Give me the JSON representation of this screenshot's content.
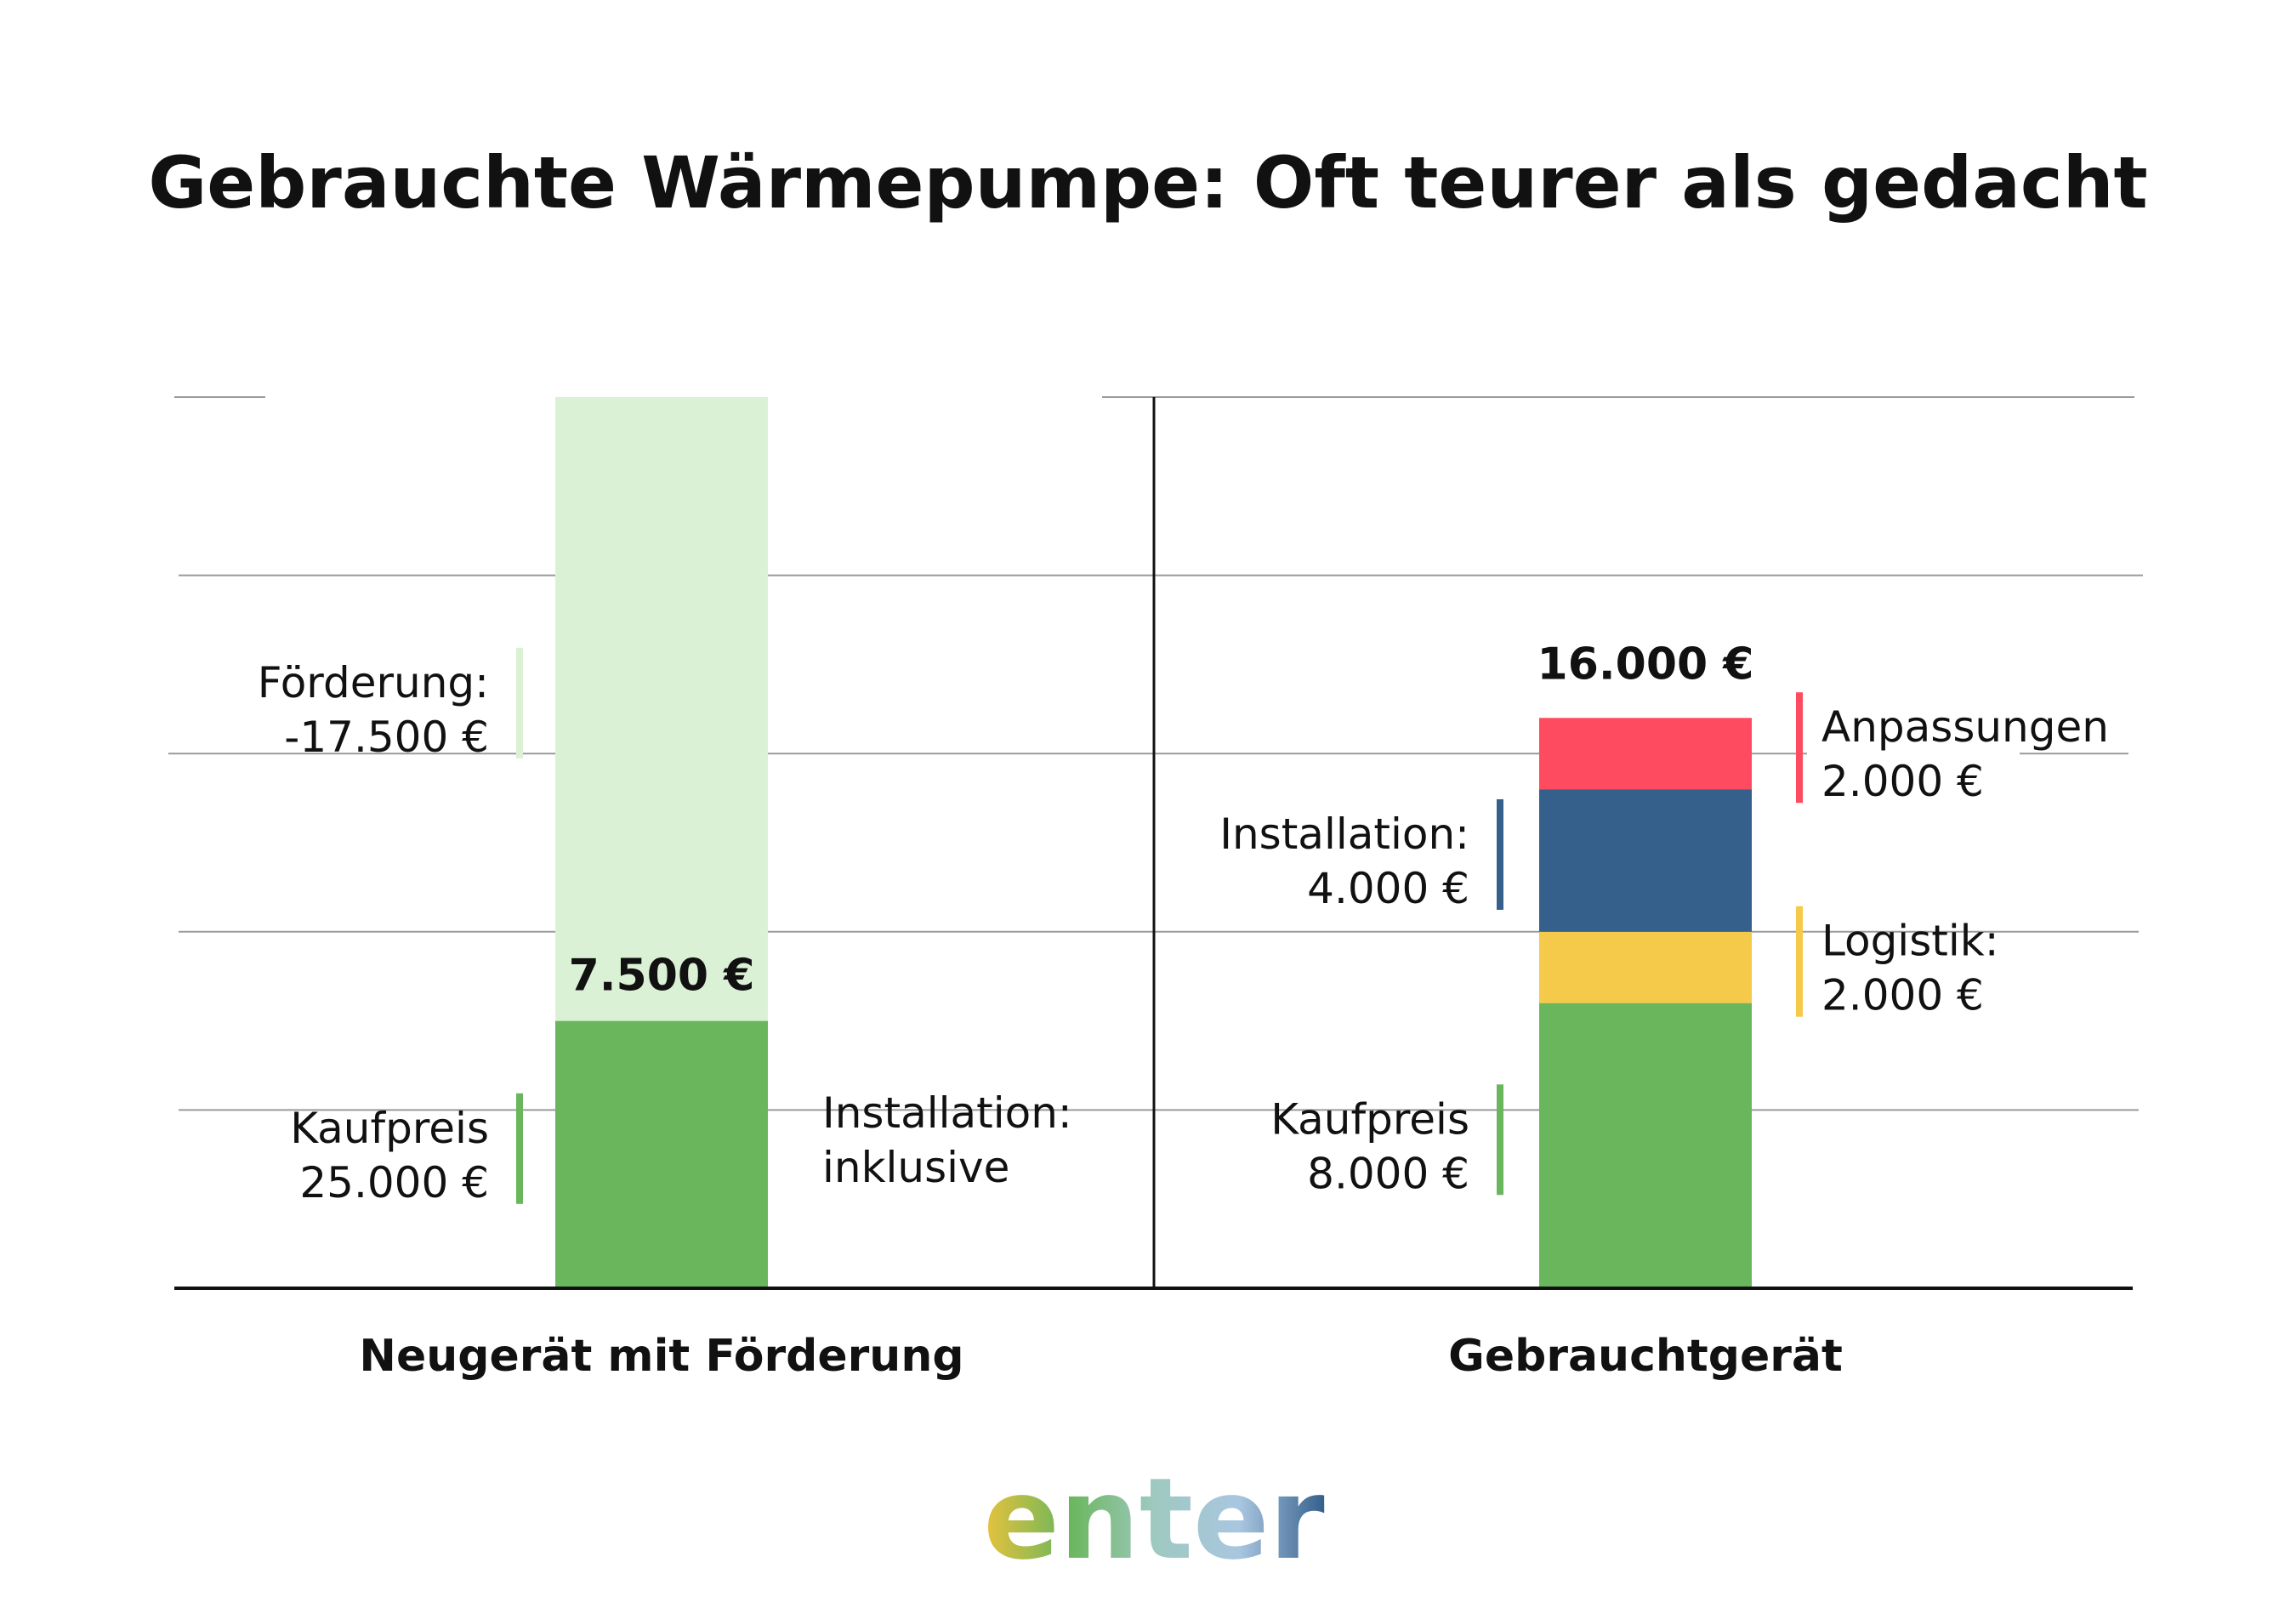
{
  "chart_data": {
    "type": "bar",
    "title": "Gebrauchte Wärmepumpe: Oft teurer als gedacht",
    "ylim": [
      0,
      25000
    ],
    "grid": true,
    "categories": [
      "Neugerät mit Förderung",
      "Gebrauchtgerät"
    ],
    "bars": [
      {
        "category": "Neugerät mit Förderung",
        "total_label": "7.500 €",
        "segments": [
          {
            "key": "kaufpreis",
            "value": 7500,
            "color": "#6ab65c",
            "label_lines": [
              "Kaufpreis",
              "25.000 €"
            ],
            "side": "left"
          },
          {
            "key": "foerderung",
            "value": 17500,
            "color": "#dbf1d6",
            "label_lines": [
              "Förderung:",
              "-17.500 €"
            ],
            "side": "left"
          }
        ],
        "note_lines": [
          "Installation:",
          "inklusive"
        ]
      },
      {
        "category": "Gebrauchtgerät",
        "total_label": "16.000 €",
        "segments": [
          {
            "key": "kaufpreis",
            "value": 8000,
            "color": "#6ab65c",
            "label_lines": [
              "Kaufpreis",
              "8.000 €"
            ],
            "side": "left"
          },
          {
            "key": "logistik",
            "value": 2000,
            "color": "#f5c94a",
            "label_lines": [
              "Logistik:",
              "2.000 €"
            ],
            "side": "right"
          },
          {
            "key": "installation",
            "value": 4000,
            "color": "#35608c",
            "label_lines": [
              "Installation:",
              "4.000 €"
            ],
            "side": "left"
          },
          {
            "key": "anpassungen",
            "value": 2000,
            "color": "#ff4b5f",
            "label_lines": [
              "Anpassungen",
              "2.000 €"
            ],
            "side": "right"
          }
        ]
      }
    ]
  },
  "brand": {
    "logo_text": "enter",
    "logo_colors": [
      "#e9c23c",
      "#6ab65c",
      "#9ec9c0",
      "#a9c6e0",
      "#35608c"
    ]
  }
}
